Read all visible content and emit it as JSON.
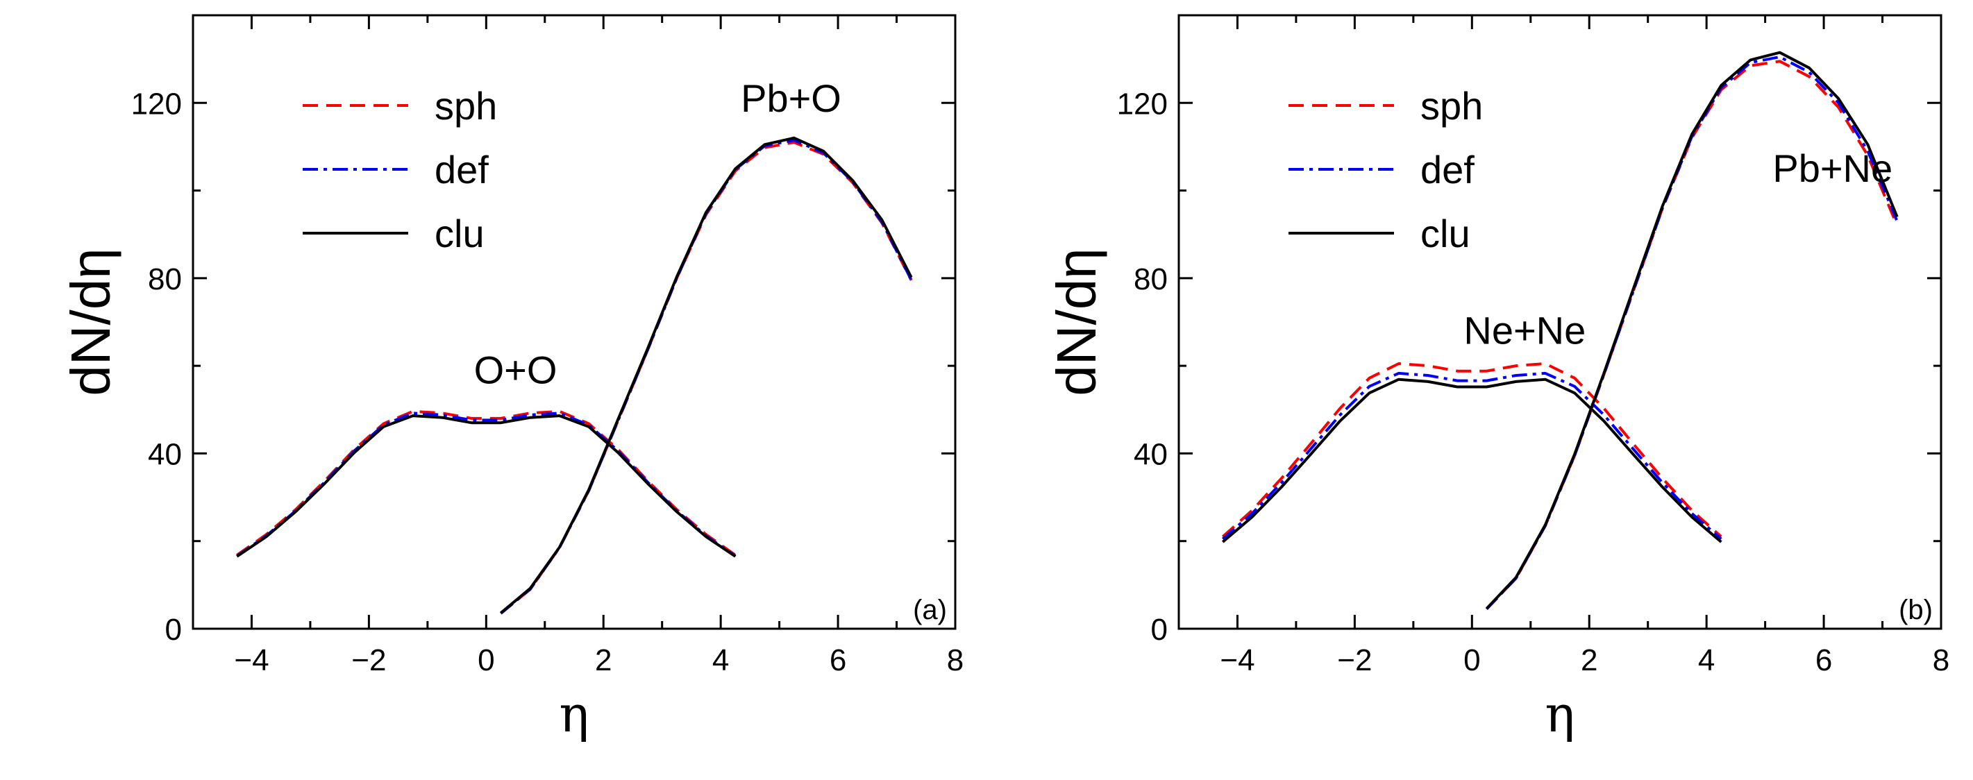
{
  "chart_data": [
    {
      "type": "line",
      "panel_label": "(a)",
      "xlabel": "η",
      "ylabel": "dN/dη",
      "xlim": [
        -5,
        8
      ],
      "ylim": [
        0,
        140
      ],
      "xticks": [
        -4,
        -2,
        0,
        2,
        4,
        6,
        8
      ],
      "yticks": [
        0,
        40,
        80,
        120
      ],
      "legend": {
        "position": "top-left",
        "entries": [
          {
            "name": "sph",
            "color": "#ff0000",
            "style": "dashed"
          },
          {
            "name": "def",
            "color": "#0000ff",
            "style": "dashdot"
          },
          {
            "name": "clu",
            "color": "#000000",
            "style": "solid"
          }
        ]
      },
      "annotations": [
        {
          "text": "O+O",
          "x": 0.5,
          "y": 56
        },
        {
          "text": "Pb+O",
          "x": 5.2,
          "y": 118
        }
      ],
      "series": [
        {
          "name": "sph",
          "system": "O+O",
          "x": [
            -4.25,
            -3.75,
            -3.25,
            -2.75,
            -2.25,
            -1.75,
            -1.25,
            -0.75,
            -0.25,
            0.25,
            0.75,
            1.25,
            1.75,
            2.25,
            2.75,
            3.25,
            3.75,
            4.25
          ],
          "y": [
            16.8,
            21.5,
            27.2,
            33.8,
            40.9,
            46.8,
            49.6,
            49.2,
            48,
            48,
            49.2,
            49.6,
            46.8,
            40.9,
            33.8,
            27.2,
            21.5,
            16.8
          ]
        },
        {
          "name": "def",
          "system": "O+O",
          "x": [
            -4.25,
            -3.75,
            -3.25,
            -2.75,
            -2.25,
            -1.75,
            -1.25,
            -0.75,
            -0.25,
            0.25,
            0.75,
            1.25,
            1.75,
            2.25,
            2.75,
            3.25,
            3.75,
            4.25
          ],
          "y": [
            16.6,
            21.2,
            26.9,
            33.5,
            40.6,
            46.5,
            49.2,
            48.8,
            47.6,
            47.6,
            48.8,
            49.2,
            46.5,
            40.6,
            33.5,
            26.9,
            21.2,
            16.6
          ]
        },
        {
          "name": "clu",
          "system": "O+O",
          "x": [
            -4.25,
            -3.75,
            -3.25,
            -2.75,
            -2.25,
            -1.75,
            -1.25,
            -0.75,
            -0.25,
            0.25,
            0.75,
            1.25,
            1.75,
            2.25,
            2.75,
            3.25,
            3.75,
            4.25
          ],
          "y": [
            16.5,
            21,
            26.7,
            33.2,
            40.2,
            46.1,
            48.6,
            48.2,
            47,
            47,
            48.2,
            48.6,
            46.1,
            40.2,
            33.2,
            26.7,
            21,
            16.5
          ]
        },
        {
          "name": "sph",
          "system": "Pb+O",
          "x": [
            0.25,
            0.75,
            1.25,
            1.75,
            2.25,
            2.75,
            3.25,
            3.75,
            4.25,
            4.75,
            5.25,
            5.75,
            6.25,
            6.75,
            7.25
          ],
          "y": [
            3.5,
            9,
            18.5,
            31.5,
            47.5,
            63.5,
            80,
            94.5,
            104.5,
            109.8,
            111,
            108.3,
            101.8,
            92.6,
            79.5
          ]
        },
        {
          "name": "def",
          "system": "Pb+O",
          "x": [
            0.25,
            0.75,
            1.25,
            1.75,
            2.25,
            2.75,
            3.25,
            3.75,
            4.25,
            4.75,
            5.25,
            5.75,
            6.25,
            6.75,
            7.25
          ],
          "y": [
            3.5,
            9,
            18.5,
            31.5,
            47.5,
            63.5,
            80,
            94.8,
            104.8,
            110.2,
            111.5,
            108.6,
            102,
            92.8,
            79.6
          ]
        },
        {
          "name": "clu",
          "system": "Pb+O",
          "x": [
            0.25,
            0.75,
            1.25,
            1.75,
            2.25,
            2.75,
            3.25,
            3.75,
            4.25,
            4.75,
            5.25,
            5.75,
            6.25,
            6.75,
            7.25
          ],
          "y": [
            3.6,
            9.2,
            18.6,
            31.7,
            47.8,
            63.8,
            80.3,
            95,
            105,
            110.5,
            112,
            109,
            102.3,
            93.3,
            80.2
          ]
        }
      ]
    },
    {
      "type": "line",
      "panel_label": "(b)",
      "xlabel": "η",
      "ylabel": "dN/dη",
      "xlim": [
        -5,
        8
      ],
      "ylim": [
        0,
        140
      ],
      "xticks": [
        -4,
        -2,
        0,
        2,
        4,
        6,
        8
      ],
      "yticks": [
        0,
        40,
        80,
        120
      ],
      "legend": {
        "position": "top-left",
        "entries": [
          {
            "name": "sph",
            "color": "#ff0000",
            "style": "dashed"
          },
          {
            "name": "def",
            "color": "#0000ff",
            "style": "dashdot"
          },
          {
            "name": "clu",
            "color": "#000000",
            "style": "solid"
          }
        ]
      },
      "annotations": [
        {
          "text": "Ne+Ne",
          "x": 0.9,
          "y": 65
        },
        {
          "text": "Pb+Ne",
          "x": 6.15,
          "y": 102
        }
      ],
      "series": [
        {
          "name": "sph",
          "system": "Ne+Ne",
          "x": [
            -4.25,
            -3.75,
            -3.25,
            -2.75,
            -2.25,
            -1.75,
            -1.25,
            -0.75,
            -0.25,
            0.25,
            0.75,
            1.25,
            1.75,
            2.25,
            2.75,
            3.25,
            3.75,
            4.25
          ],
          "y": [
            21,
            27,
            34.3,
            42.2,
            50.3,
            57.2,
            60.5,
            60,
            58.8,
            58.8,
            60,
            60.5,
            57.2,
            50.3,
            42.2,
            34.3,
            27,
            21
          ]
        },
        {
          "name": "def",
          "system": "Ne+Ne",
          "x": [
            -4.25,
            -3.75,
            -3.25,
            -2.75,
            -2.25,
            -1.75,
            -1.25,
            -0.75,
            -0.25,
            0.25,
            0.75,
            1.25,
            1.75,
            2.25,
            2.75,
            3.25,
            3.75,
            4.25
          ],
          "y": [
            20.5,
            26.3,
            33.3,
            41,
            48.8,
            55.3,
            58.3,
            57.8,
            56.6,
            56.6,
            57.8,
            58.3,
            55.3,
            48.8,
            41,
            33.3,
            26.3,
            20.5
          ]
        },
        {
          "name": "clu",
          "system": "Ne+Ne",
          "x": [
            -4.25,
            -3.75,
            -3.25,
            -2.75,
            -2.25,
            -1.75,
            -1.25,
            -0.75,
            -0.25,
            0.25,
            0.75,
            1.25,
            1.75,
            2.25,
            2.75,
            3.25,
            3.75,
            4.25
          ],
          "y": [
            19.8,
            25.5,
            32.3,
            39.8,
            47.4,
            53.8,
            56.9,
            56.4,
            55.2,
            55.2,
            56.4,
            56.9,
            53.8,
            47.4,
            39.8,
            32.3,
            25.5,
            19.8
          ]
        },
        {
          "name": "sph",
          "system": "Pb+Ne",
          "x": [
            0.25,
            0.75,
            1.25,
            1.75,
            2.25,
            2.75,
            3.25,
            3.75,
            4.25,
            4.75,
            5.25,
            5.75,
            6.25,
            6.75,
            7.25
          ],
          "y": [
            4.5,
            11.5,
            23.5,
            39.5,
            58,
            77,
            96,
            112,
            123,
            128.5,
            129.5,
            126,
            119,
            108,
            92
          ]
        },
        {
          "name": "def",
          "system": "Pb+Ne",
          "x": [
            0.25,
            0.75,
            1.25,
            1.75,
            2.25,
            2.75,
            3.25,
            3.75,
            4.25,
            4.75,
            5.25,
            5.75,
            6.25,
            6.75,
            7.25
          ],
          "y": [
            4.5,
            11.5,
            23.5,
            39.5,
            58,
            77,
            96,
            112.3,
            123.5,
            129.2,
            130.5,
            127,
            120,
            109,
            93
          ]
        },
        {
          "name": "clu",
          "system": "Pb+Ne",
          "x": [
            0.25,
            0.75,
            1.25,
            1.75,
            2.25,
            2.75,
            3.25,
            3.75,
            4.25,
            4.75,
            5.25,
            5.75,
            6.25,
            6.75,
            7.25
          ],
          "y": [
            4.6,
            11.7,
            23.7,
            39.8,
            58.3,
            77.5,
            96.5,
            112.8,
            124,
            129.8,
            131.5,
            128,
            121,
            110.5,
            94
          ]
        }
      ]
    }
  ]
}
